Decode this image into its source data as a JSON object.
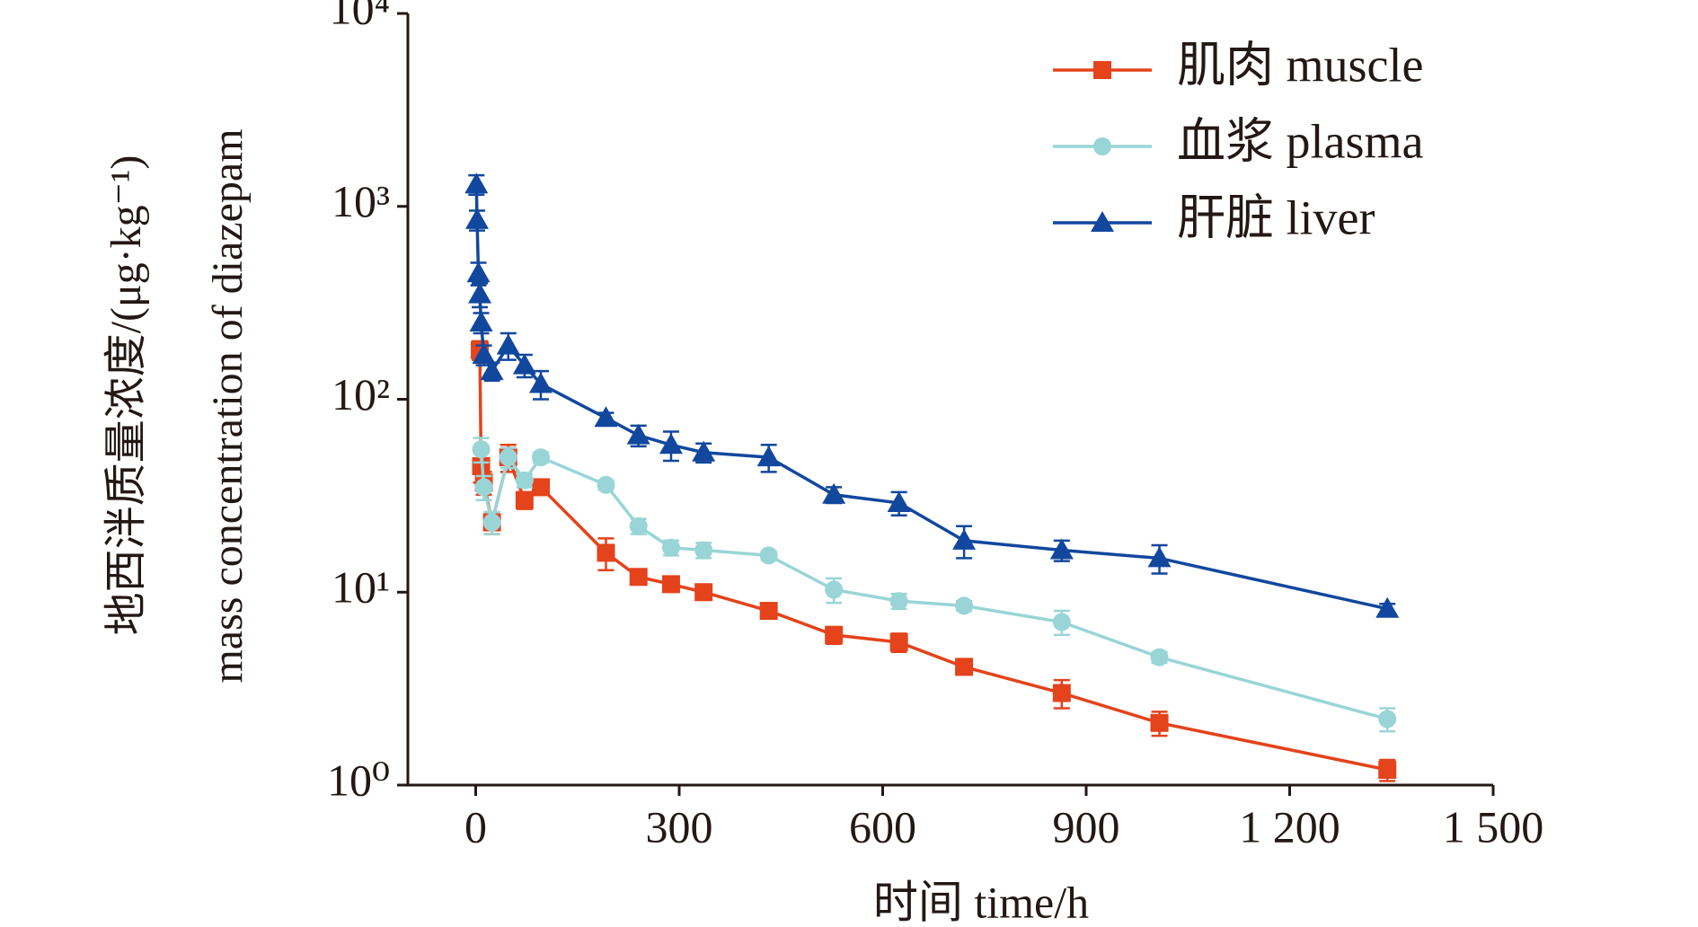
{
  "chart_data": {
    "type": "line",
    "x_label": "时间 time/h",
    "y_label": [
      "地西泮质量浓度/(μg·kg⁻¹)",
      "mass concentration of diazepam"
    ],
    "x": [
      1,
      2,
      4,
      6,
      8,
      12,
      24,
      48,
      72,
      96,
      192,
      240,
      288,
      336,
      432,
      528,
      624,
      720,
      864,
      1008,
      1344
    ],
    "xlim": [
      -100,
      1500
    ],
    "xticks": [
      0,
      300,
      600,
      900,
      {
        "value": 1200,
        "label": "1 200"
      },
      {
        "value": 1500,
        "label": "1 500"
      }
    ],
    "ylim": [
      1,
      10000
    ],
    "yticks": [
      {
        "value": 1,
        "label": "10⁰"
      },
      {
        "value": 10,
        "label": "10¹"
      },
      {
        "value": 100,
        "label": "10²"
      },
      {
        "value": 1000,
        "label": "10³"
      },
      {
        "value": 10000,
        "label": "10⁴"
      }
    ],
    "log_y": true,
    "legend": "upper right",
    "series": [
      {
        "name": "肌肉 muscle",
        "color": "#e4431b",
        "marker": "square",
        "values": [
          null,
          null,
          null,
          180,
          45,
          37,
          23,
          50,
          30,
          35,
          16,
          12,
          11,
          10,
          8,
          6,
          5.5,
          4.1,
          3.0,
          2.1,
          1.2
        ],
        "errors": [
          null,
          null,
          null,
          20,
          8,
          5,
          3,
          8,
          3,
          3,
          3,
          0.8,
          0.8,
          0.7,
          0.4,
          0.6,
          0.6,
          0.3,
          0.5,
          0.3,
          0.15
        ]
      },
      {
        "name": "血浆 plasma",
        "color": "#99d5d6",
        "marker": "circle",
        "values": [
          null,
          null,
          null,
          null,
          55,
          35,
          23,
          50,
          38,
          50,
          36,
          22,
          17,
          16.5,
          15.5,
          10.3,
          9,
          8.5,
          7,
          4.6,
          2.2
        ],
        "errors": [
          null,
          null,
          null,
          null,
          8,
          5,
          3,
          6,
          3,
          3,
          2,
          2,
          1.5,
          1.5,
          0.8,
          1.5,
          0.8,
          0.5,
          1,
          0.3,
          0.3
        ]
      },
      {
        "name": "肝脏 liver",
        "color": "#12479e",
        "marker": "triangle",
        "values": [
          1300,
          850,
          450,
          350,
          250,
          170,
          140,
          190,
          150,
          120,
          80,
          65,
          58,
          53,
          50,
          32,
          29,
          18.5,
          16.5,
          15,
          8.2
        ],
        "errors": [
          150,
          100,
          60,
          50,
          30,
          20,
          15,
          30,
          20,
          20,
          5,
          8,
          10,
          6,
          8,
          3,
          4,
          3.5,
          2,
          2.5,
          0.5
        ]
      }
    ]
  }
}
